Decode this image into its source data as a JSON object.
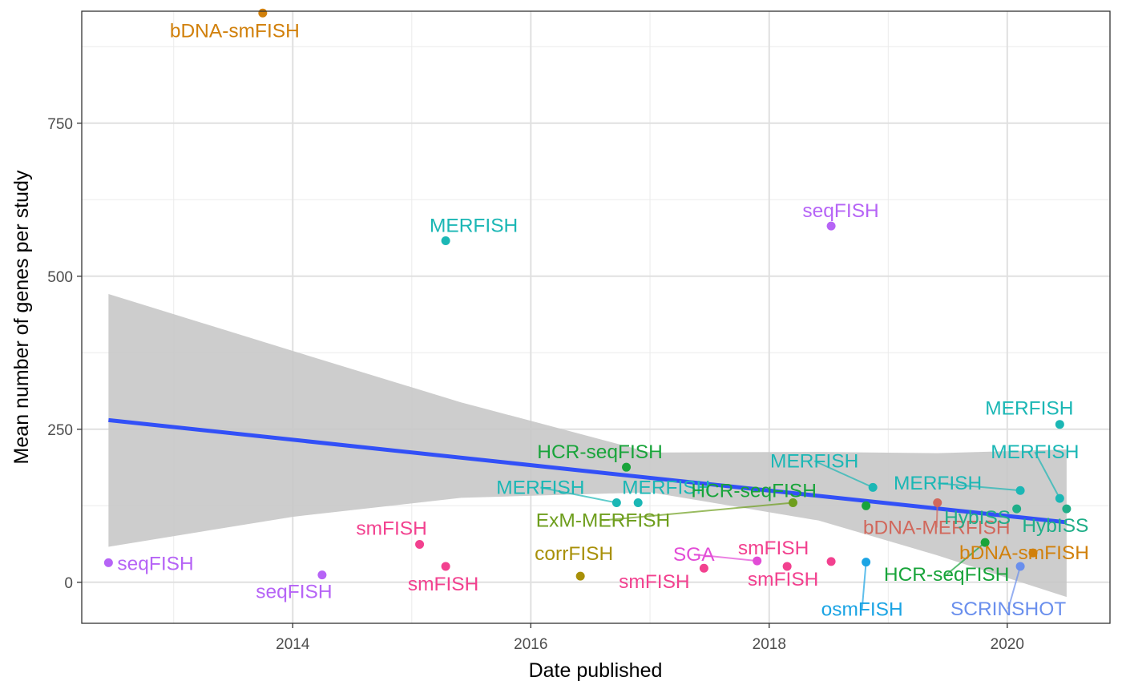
{
  "chart_data": {
    "type": "scatter",
    "title": "",
    "xlabel": "Date published",
    "ylabel": "Mean number of genes per study",
    "xlim": [
      "2012-03-25",
      "2020-11-11"
    ],
    "ylim": [
      -67,
      933
    ],
    "x_ticks": [
      {
        "date": "2014-01-01",
        "label": "2014"
      },
      {
        "date": "2016-01-01",
        "label": "2016"
      },
      {
        "date": "2018-01-01",
        "label": "2018"
      },
      {
        "date": "2020-01-01",
        "label": "2020"
      }
    ],
    "y_ticks": [
      {
        "value": 0,
        "label": "0"
      },
      {
        "value": 250,
        "label": "250"
      },
      {
        "value": 500,
        "label": "500"
      },
      {
        "value": 750,
        "label": "750"
      }
    ],
    "grid": true,
    "legend": "none",
    "colors": {
      "bDNA-smFISH": "#d1800b",
      "MERFISH": "#1bb7b5",
      "seqFISH": "#b664f6",
      "HCR-seqFISH": "#18a43a",
      "smFISH": "#f2418f",
      "corrFISH": "#a89008",
      "ExM-MERFISH": "#6e9e1d",
      "SGA": "#e24cd6",
      "osmFISH": "#1ba4e4",
      "SCRINSHOT": "#6a8fed",
      "HybISS": "#1fae88",
      "bDNA-MERFISH": "#d1685c",
      "trend": "#3250f7",
      "ribbon": "#c8c8c8"
    },
    "points": [
      {
        "label": "seqFISH",
        "date": "2012-06-15",
        "y": 32
      },
      {
        "label": "bDNA-smFISH",
        "date": "2013-10-01",
        "y": 930
      },
      {
        "label": "seqFISH",
        "date": "2014-04-01",
        "y": 12
      },
      {
        "label": "smFISH",
        "date": "2015-01-25",
        "y": 62
      },
      {
        "label": "MERFISH",
        "date": "2015-04-15",
        "y": 558
      },
      {
        "label": "smFISH",
        "date": "2015-04-15",
        "y": 26
      },
      {
        "label": "corrFISH",
        "date": "2016-06-01",
        "y": 10
      },
      {
        "label": "MERFISH",
        "date": "2016-09-20",
        "y": 130
      },
      {
        "label": "HCR-seqFISH",
        "date": "2016-10-20",
        "y": 188
      },
      {
        "label": "MERFISH",
        "date": "2016-11-25",
        "y": 130
      },
      {
        "label": "smFISH",
        "date": "2017-06-15",
        "y": 23
      },
      {
        "label": "SGA",
        "date": "2017-11-25",
        "y": 35
      },
      {
        "label": "smFISH",
        "date": "2018-02-25",
        "y": 26
      },
      {
        "label": "ExM-MERFISH",
        "date": "2018-03-15",
        "y": 130
      },
      {
        "label": "seqFISH",
        "date": "2018-07-10",
        "y": 582
      },
      {
        "label": "smFISH",
        "date": "2018-07-10",
        "y": 34
      },
      {
        "label": "HCR-seqFISH",
        "date": "2018-10-25",
        "y": 125
      },
      {
        "label": "osmFISH",
        "date": "2018-10-25",
        "y": 33
      },
      {
        "label": "MERFISH",
        "date": "2018-11-15",
        "y": 155
      },
      {
        "label": "bDNA-MERFISH",
        "date": "2019-06-01",
        "y": 130
      },
      {
        "label": "HCR-seqFISH",
        "date": "2019-10-25",
        "y": 65
      },
      {
        "label": "HybISS",
        "date": "2020-01-30",
        "y": 120
      },
      {
        "label": "MERFISH",
        "date": "2020-02-10",
        "y": 150
      },
      {
        "label": "SCRINSHOT",
        "date": "2020-02-10",
        "y": 26
      },
      {
        "label": "bDNA-smFISH",
        "date": "2020-03-20",
        "y": 48
      },
      {
        "label": "MERFISH",
        "date": "2020-06-10",
        "y": 258
      },
      {
        "label": "MERFISH",
        "date": "2020-06-10",
        "y": 137
      },
      {
        "label": "HybISS",
        "date": "2020-07-01",
        "y": 120
      }
    ],
    "trend": {
      "type": "linear",
      "start": {
        "date": "2012-06-15",
        "y": 265
      },
      "end": {
        "date": "2020-07-01",
        "y": 98
      },
      "band": [
        {
          "date": "2012-06-15",
          "lo": 58,
          "hi": 471
        },
        {
          "date": "2014-01-01",
          "lo": 107,
          "hi": 378
        },
        {
          "date": "2015-06-01",
          "lo": 138,
          "hi": 294
        },
        {
          "date": "2017-01-01",
          "lo": 147,
          "hi": 212
        },
        {
          "date": "2018-06-01",
          "lo": 101,
          "hi": 213
        },
        {
          "date": "2019-06-01",
          "lo": 44,
          "hi": 211
        },
        {
          "date": "2020-07-01",
          "lo": -24,
          "hi": 217
        }
      ]
    }
  }
}
